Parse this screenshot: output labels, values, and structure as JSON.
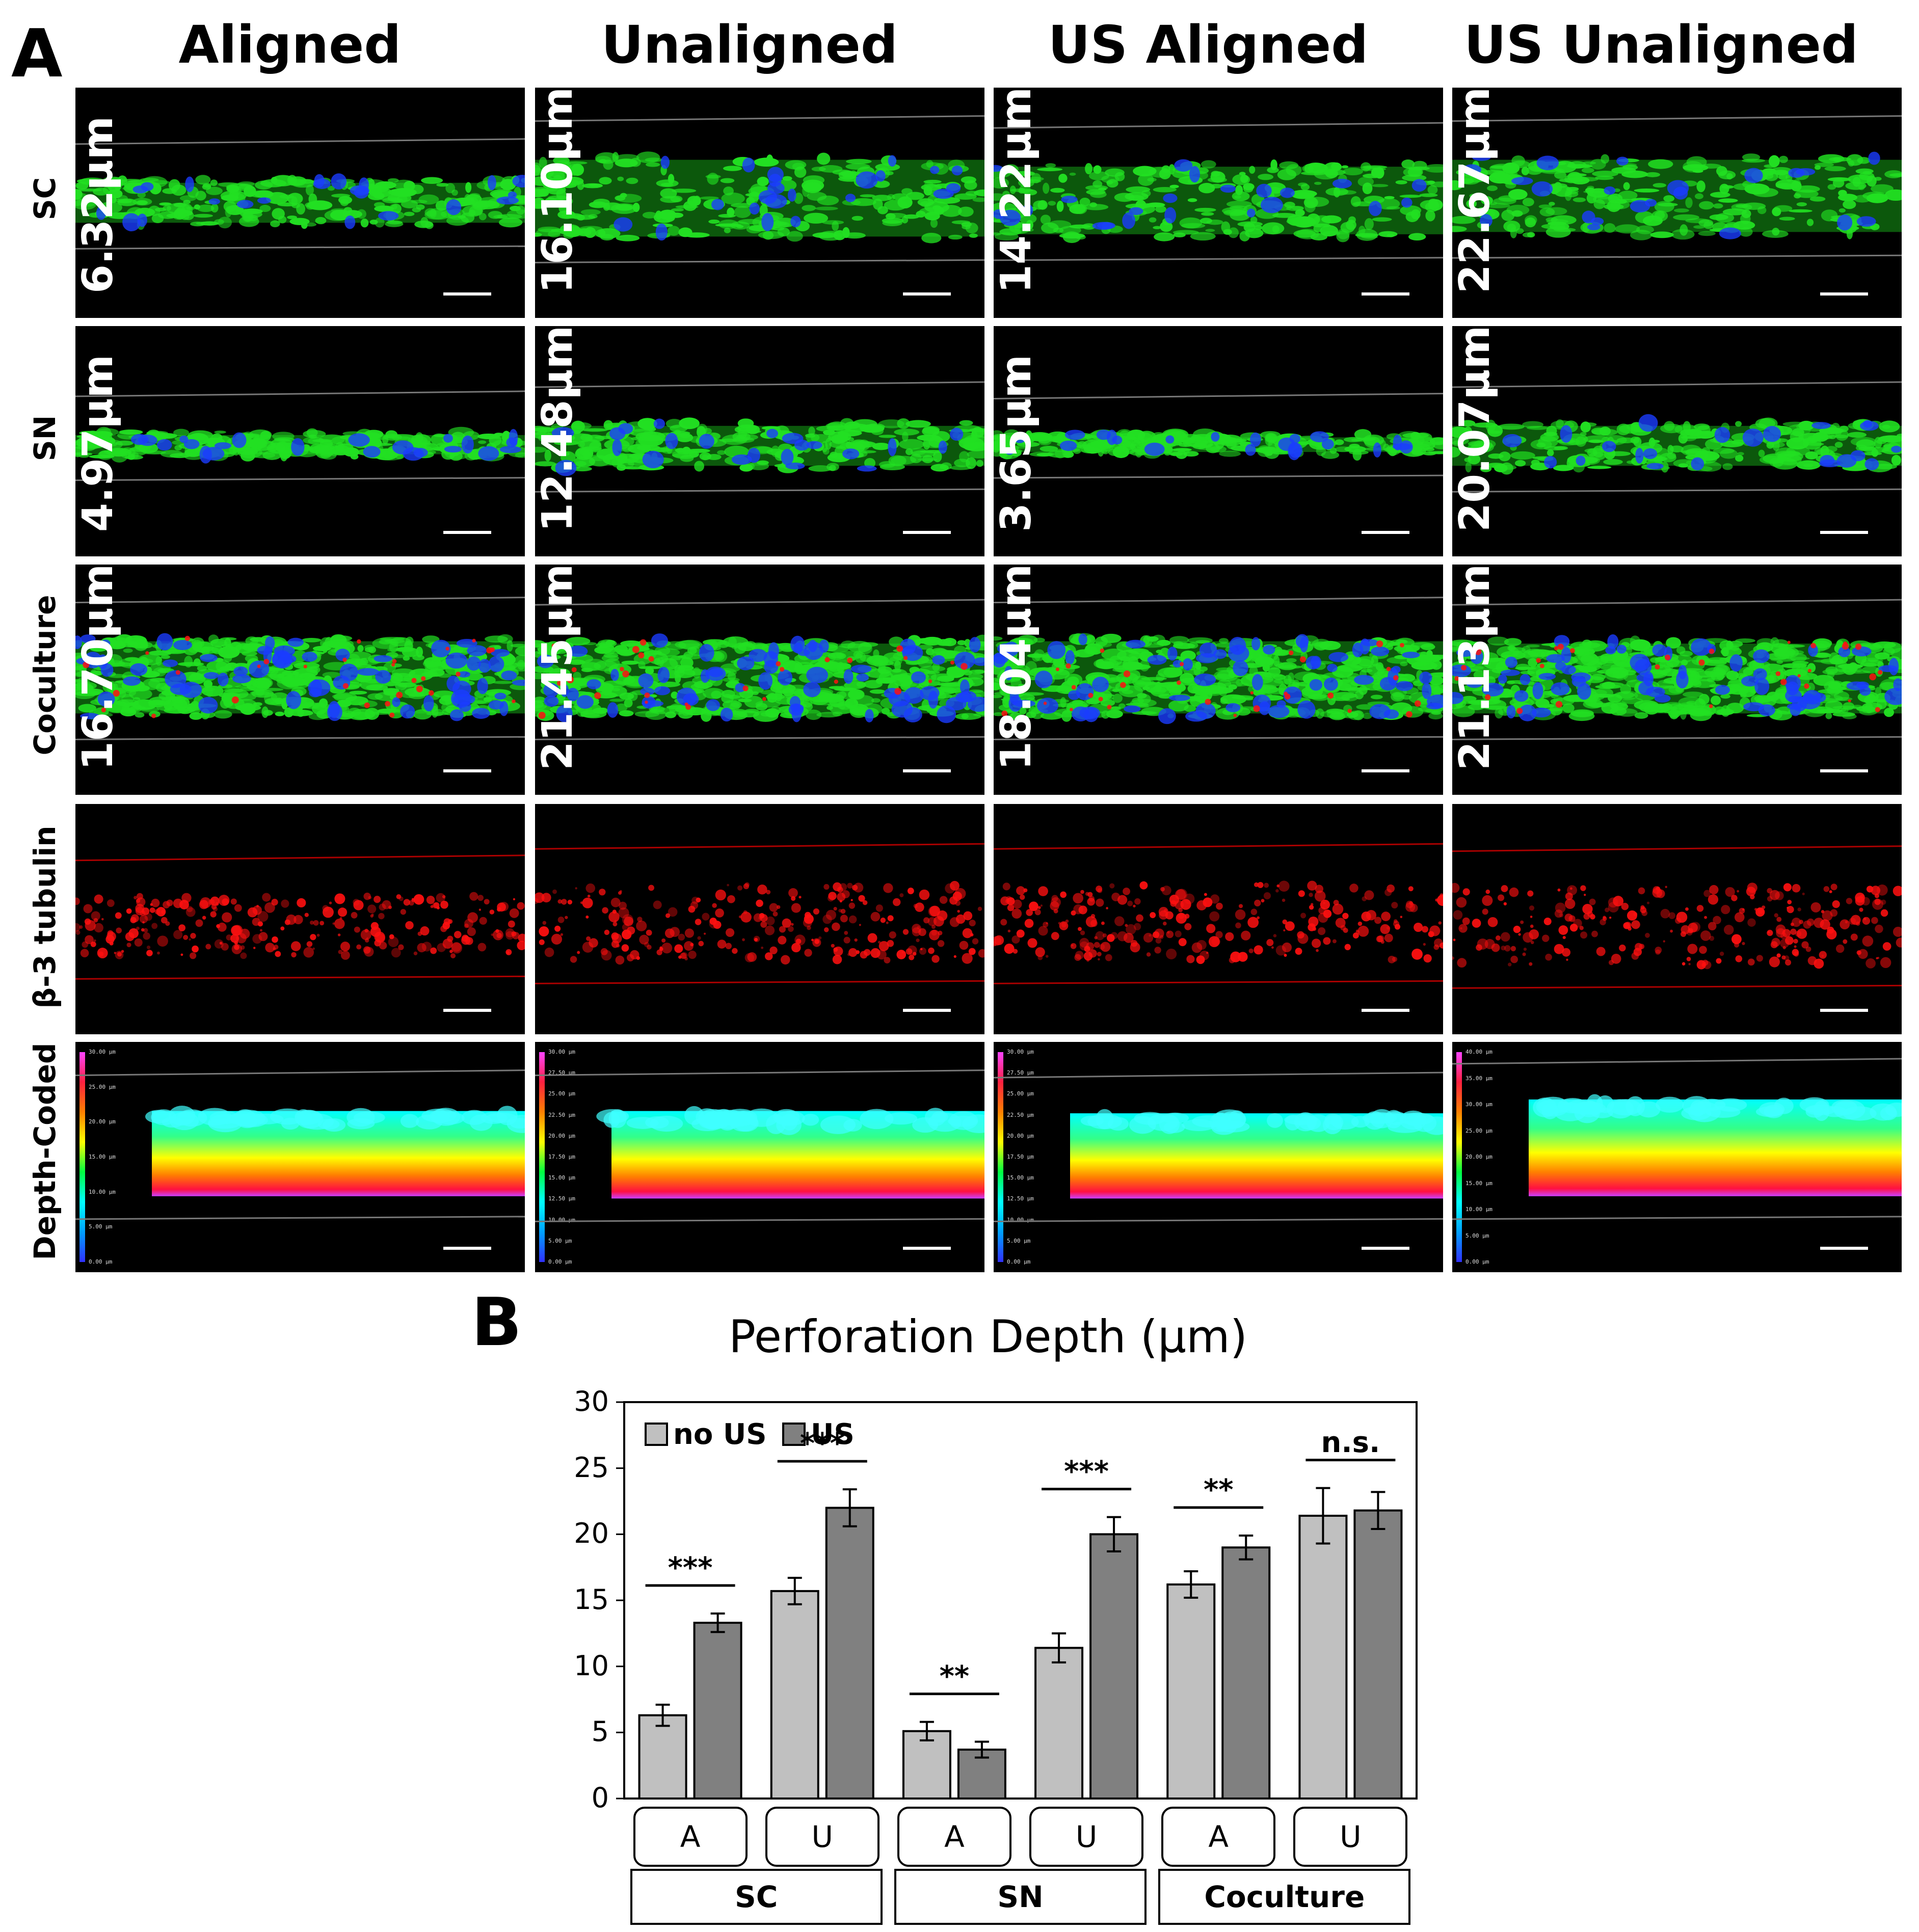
{
  "panel_a": {
    "letter": "A",
    "columns": [
      "Aligned",
      "Unaligned",
      "US Aligned",
      "US Unaligned"
    ],
    "rows": [
      "SC",
      "SN",
      "Coculture",
      "β-3 tubulin",
      "Depth-Coded"
    ],
    "depth_labels": [
      [
        "6.32μm",
        "16.10μm",
        "14.22μm",
        "22.67μm"
      ],
      [
        "4.97μm",
        "12.48μm",
        "3.65μm",
        "20.07μm"
      ],
      [
        "16.70μm",
        "21.45μm",
        "18.04μm",
        "21.13μm"
      ]
    ],
    "colorbar_labels": [
      [
        "30.00 μm",
        "25.00 μm",
        "20.00 μm",
        "15.00 μm",
        "10.00 μm",
        "5.00 μm",
        "0.00 μm"
      ],
      [
        "30.00 μm",
        "27.50 μm",
        "25.00 μm",
        "22.50 μm",
        "20.00 μm",
        "17.50 μm",
        "15.00 μm",
        "12.50 μm",
        "10.00 μm",
        "5.00 μm",
        "0.00 μm"
      ],
      [
        "30.00 μm",
        "27.50 μm",
        "25.00 μm",
        "22.50 μm",
        "20.00 μm",
        "17.50 μm",
        "15.00 μm",
        "12.50 μm",
        "10.00 μm",
        "5.00 μm",
        "0.00 μm"
      ],
      [
        "40.00 μm",
        "35.00 μm",
        "30.00 μm",
        "25.00 μm",
        "20.00 μm",
        "15.00 μm",
        "10.00 μm",
        "5.00 μm",
        "0.00 μm"
      ]
    ],
    "colors": {
      "nuclei": "#1a3cff",
      "cells": "#22e022",
      "tubulin": "#ff1010"
    }
  },
  "panel_b": {
    "letter": "B"
  },
  "chart_data": {
    "type": "bar",
    "title": "Perforation Depth (μm)",
    "xlabel": "",
    "ylabel": "",
    "ylim": [
      0,
      30
    ],
    "yticks": [
      0,
      5,
      10,
      15,
      20,
      25,
      30
    ],
    "groups": [
      "SC",
      "SN",
      "Coculture"
    ],
    "categories": [
      "A",
      "U",
      "A",
      "U",
      "A",
      "U"
    ],
    "series": [
      {
        "name": "no US",
        "color": "#c0c0c0",
        "values": [
          6.3,
          15.7,
          5.1,
          11.4,
          16.2,
          21.4
        ],
        "errors": [
          0.8,
          1.0,
          0.7,
          1.1,
          1.0,
          2.1
        ]
      },
      {
        "name": "US",
        "color": "#808080",
        "values": [
          13.3,
          22.0,
          3.7,
          20.0,
          19.0,
          21.8
        ],
        "errors": [
          0.7,
          1.4,
          0.6,
          1.3,
          0.9,
          1.4
        ]
      }
    ],
    "significance": [
      "***",
      "***",
      "**",
      "***",
      "**",
      "n.s."
    ],
    "legend": [
      "no US",
      "US"
    ],
    "legend_position": "top-left"
  }
}
